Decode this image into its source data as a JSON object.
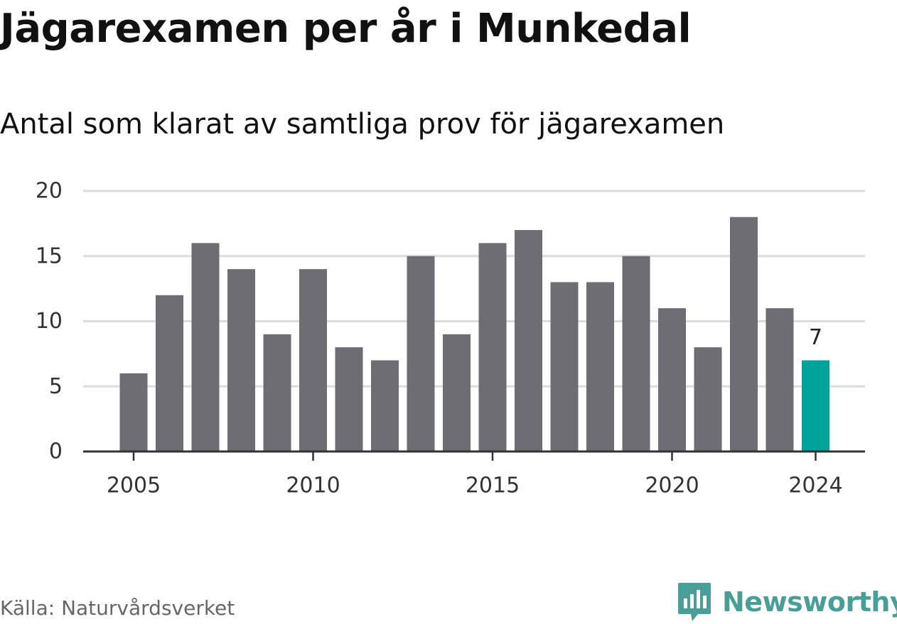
{
  "header": {
    "title": "Jägarexamen per år i Munkedal",
    "subtitle": "Antal som klarat av samtliga prov för jägarexamen"
  },
  "footer": {
    "source": "Källa: Naturvårdsverket",
    "brand": "Newsworthy",
    "brand_icon": "newsworthy-logo-icon"
  },
  "colors": {
    "bar": "#6e6d73",
    "highlight": "#00a39a",
    "grid": "#dcdcdc",
    "axis": "#333333",
    "brand": "#4a9e98",
    "text": "#111111",
    "muted": "#666666"
  },
  "chart_data": {
    "type": "bar",
    "title": "Jägarexamen per år i Munkedal",
    "subtitle": "Antal som klarat av samtliga prov för jägarexamen",
    "xlabel": "",
    "ylabel": "",
    "x": [
      2005,
      2006,
      2007,
      2008,
      2009,
      2010,
      2011,
      2012,
      2013,
      2014,
      2015,
      2016,
      2017,
      2018,
      2019,
      2020,
      2021,
      2022,
      2023,
      2024
    ],
    "values": [
      6,
      12,
      16,
      14,
      9,
      14,
      8,
      7,
      15,
      9,
      16,
      17,
      13,
      13,
      15,
      11,
      8,
      18,
      11,
      7
    ],
    "highlight": {
      "x": 2024,
      "label": "7"
    },
    "x_ticks": [
      "2005",
      "2010",
      "2015",
      "2020",
      "2024"
    ],
    "y_ticks": [
      "0",
      "5",
      "10",
      "15",
      "20"
    ],
    "ylim": [
      0,
      20
    ],
    "grid": true,
    "legend": "none"
  }
}
